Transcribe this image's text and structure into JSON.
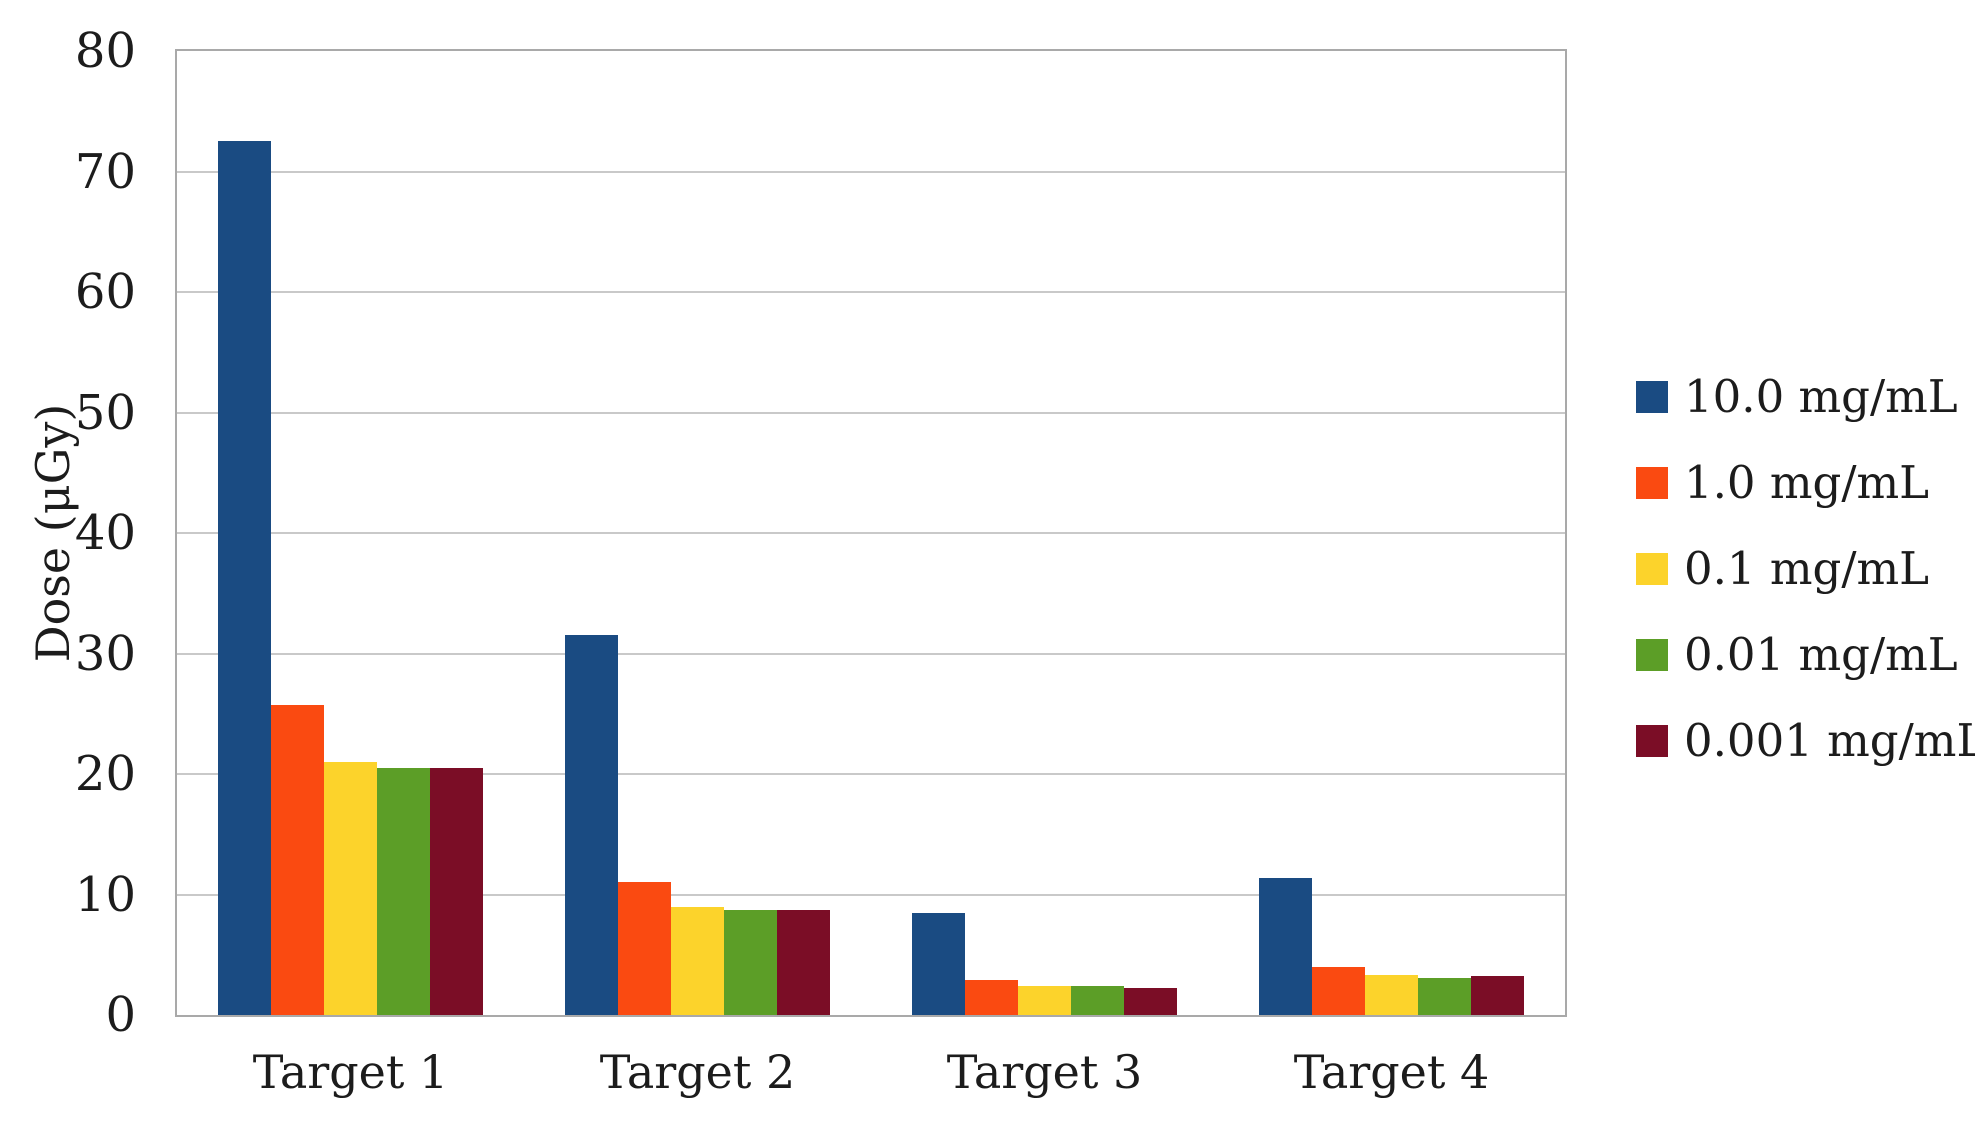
{
  "chart_data": {
    "type": "bar",
    "title": "",
    "xlabel": "",
    "ylabel": "Dose (μGy)",
    "categories": [
      "Target 1",
      "Target 2",
      "Target 3",
      "Target 4"
    ],
    "series": [
      {
        "name": "10.0 mg/mL",
        "color": "#1A4B82",
        "values": [
          72.5,
          31.5,
          8.5,
          11.4
        ]
      },
      {
        "name": "1.0 mg/mL",
        "color": "#FA4A11",
        "values": [
          25.7,
          11.0,
          2.9,
          4.0
        ]
      },
      {
        "name": "0.1 mg/mL",
        "color": "#FCD32B",
        "values": [
          21.0,
          9.0,
          2.4,
          3.3
        ]
      },
      {
        "name": "0.01 mg/mL",
        "color": "#5C9E27",
        "values": [
          20.5,
          8.7,
          2.4,
          3.1
        ]
      },
      {
        "name": "0.001 mg/mL",
        "color": "#7B0D26",
        "values": [
          20.5,
          8.7,
          2.2,
          3.2
        ]
      }
    ],
    "ylim": [
      0,
      80
    ],
    "yticks": [
      0,
      10,
      20,
      30,
      40,
      50,
      60,
      70,
      80
    ],
    "grid": "horizontal",
    "legend_position": "right",
    "colors": {
      "frame": "#a9a9a9",
      "gridline": "#c9c9c9",
      "text": "#1c1c1c",
      "background": "#ffffff"
    }
  }
}
